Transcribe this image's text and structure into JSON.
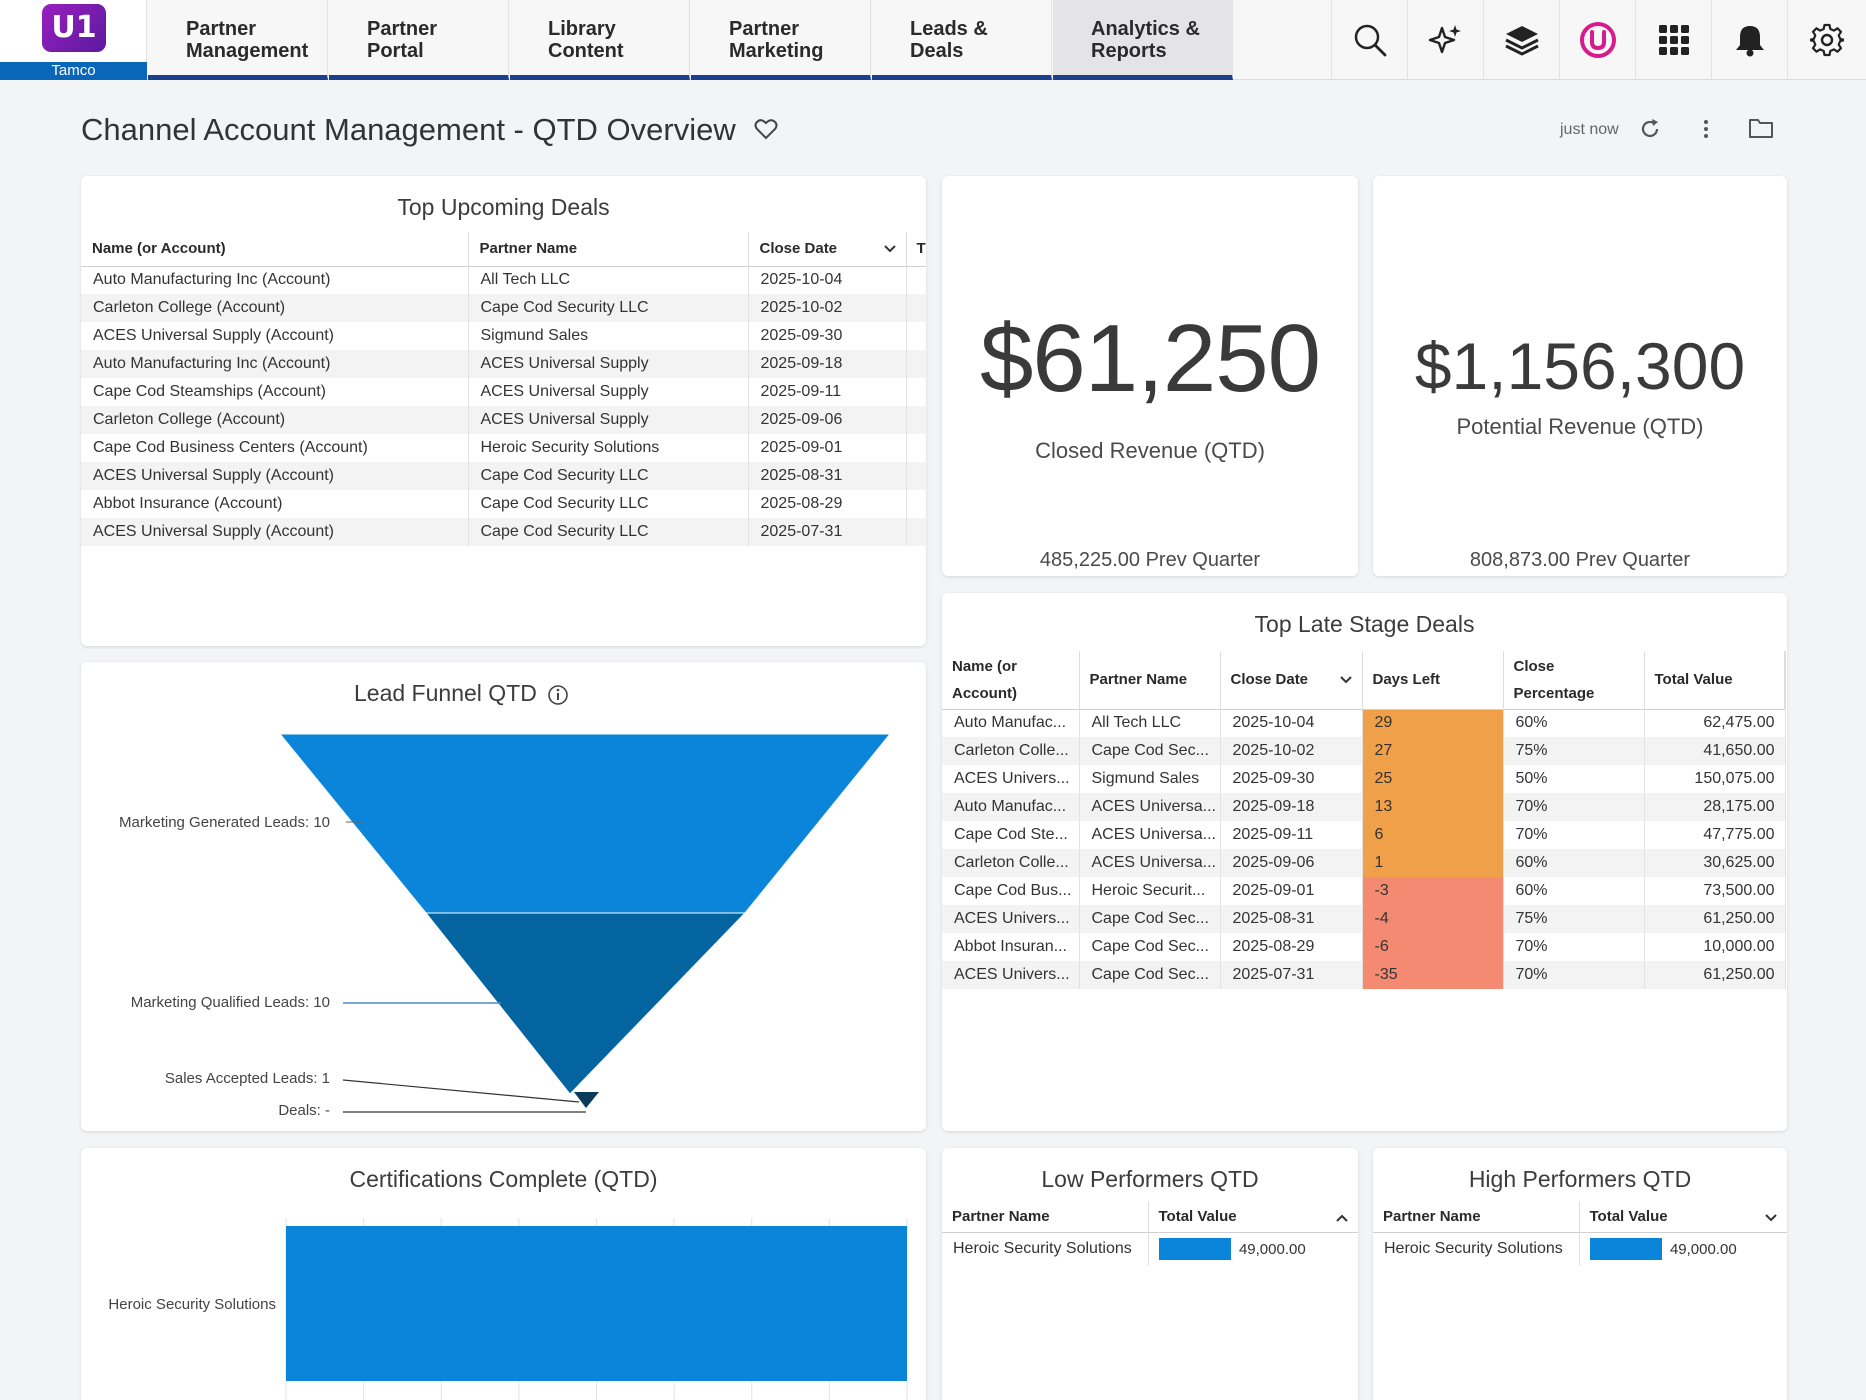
{
  "app": {
    "logo_text": "U1",
    "tenant": "Tamco"
  },
  "nav": {
    "tabs": [
      {
        "label": "Partner\nManagement"
      },
      {
        "label": "Partner\nPortal"
      },
      {
        "label": "Library\nContent"
      },
      {
        "label": "Partner\nMarketing"
      },
      {
        "label": "Leads &\nDeals"
      },
      {
        "label": "Analytics &\nReports",
        "active": true
      }
    ],
    "tools": [
      "search-icon",
      "sparkle-icon",
      "layers-icon",
      "brand-icon",
      "apps-grid-icon",
      "bell-icon",
      "gear-icon"
    ]
  },
  "page": {
    "title": "Channel Account Management - QTD Overview",
    "refresh_time": "just now"
  },
  "top_upcoming": {
    "title": "Top Upcoming Deals",
    "columns": [
      "Name (or Account)",
      "Partner Name",
      "Close Date",
      "T"
    ],
    "rows": [
      [
        "Auto Manufacturing Inc (Account)",
        "All Tech LLC",
        "2025-10-04"
      ],
      [
        "Carleton College (Account)",
        "Cape Cod Security LLC",
        "2025-10-02"
      ],
      [
        "ACES Universal Supply (Account)",
        "Sigmund Sales",
        "2025-09-30"
      ],
      [
        "Auto Manufacturing Inc (Account)",
        "ACES Universal Supply",
        "2025-09-18"
      ],
      [
        "Cape Cod Steamships (Account)",
        "ACES Universal Supply",
        "2025-09-11"
      ],
      [
        "Carleton College (Account)",
        "ACES Universal Supply",
        "2025-09-06"
      ],
      [
        "Cape Cod Business Centers (Account)",
        "Heroic Security Solutions",
        "2025-09-01"
      ],
      [
        "ACES Universal Supply (Account)",
        "Cape Cod Security LLC",
        "2025-08-31"
      ],
      [
        "Abbot Insurance (Account)",
        "Cape Cod Security LLC",
        "2025-08-29"
      ],
      [
        "ACES Universal Supply (Account)",
        "Cape Cod Security LLC",
        "2025-07-31"
      ]
    ]
  },
  "closed_revenue": {
    "value": "$61,250",
    "label": "Closed Revenue (QTD)",
    "prev": "485,225.00 Prev Quarter"
  },
  "potential_revenue": {
    "value": "$1,156,300",
    "label": "Potential Revenue (QTD)",
    "prev": "808,873.00 Prev Quarter"
  },
  "late_stage": {
    "title": "Top Late Stage Deals",
    "columns": [
      "Name (or Account)",
      "Partner Name",
      "Close Date",
      "Days Left",
      "Close Percentage",
      "Total Value"
    ],
    "rows": [
      [
        "Auto Manufac...",
        "All Tech LLC",
        "2025-10-04",
        "29",
        "60%",
        "62,475.00"
      ],
      [
        "Carleton Colle...",
        "Cape Cod Sec...",
        "2025-10-02",
        "27",
        "75%",
        "41,650.00"
      ],
      [
        "ACES Univers...",
        "Sigmund Sales",
        "2025-09-30",
        "25",
        "50%",
        "150,075.00"
      ],
      [
        "Auto Manufac...",
        "ACES Universa...",
        "2025-09-18",
        "13",
        "70%",
        "28,175.00"
      ],
      [
        "Cape Cod Ste...",
        "ACES Universa...",
        "2025-09-11",
        "6",
        "70%",
        "47,775.00"
      ],
      [
        "Carleton Colle...",
        "ACES Universa...",
        "2025-09-06",
        "1",
        "60%",
        "30,625.00"
      ],
      [
        "Cape Cod Bus...",
        "Heroic Securit...",
        "2025-09-01",
        "-3",
        "60%",
        "73,500.00"
      ],
      [
        "ACES Univers...",
        "Cape Cod Sec...",
        "2025-08-31",
        "-4",
        "75%",
        "61,250.00"
      ],
      [
        "Abbot Insuran...",
        "Cape Cod Sec...",
        "2025-08-29",
        "-6",
        "70%",
        "10,000.00"
      ],
      [
        "ACES Univers...",
        "Cape Cod Sec...",
        "2025-07-31",
        "-35",
        "70%",
        "61,250.00"
      ]
    ],
    "colors": {
      "warn": "#f0a048",
      "late": "#f48a72"
    }
  },
  "lead_funnel": {
    "title": "Lead Funnel QTD",
    "stages": [
      {
        "label": "Marketing Generated Leads: 10",
        "value": 10,
        "color": "#0a85da"
      },
      {
        "label": "Marketing Qualified Leads: 10",
        "value": 10,
        "color": "#03649f"
      },
      {
        "label": "Sales Accepted Leads: 1",
        "value": 1,
        "color": "#0c3a5c"
      },
      {
        "label": "Deals: -",
        "value": 0,
        "color": "#0c3a5c"
      }
    ]
  },
  "chart_data": {
    "type": "bar",
    "title": "Certifications Complete (QTD)",
    "orientation": "horizontal",
    "categories": [
      "Heroic Security Solutions"
    ],
    "values": [
      1
    ],
    "color": "#0a85da",
    "xlabel": "",
    "ylabel": ""
  },
  "low_performers": {
    "title": "Low Performers QTD",
    "columns": [
      "Partner Name",
      "Total Value"
    ],
    "rows": [
      {
        "name": "Heroic Security Solutions",
        "value": "49,000.00",
        "fraction": 1
      }
    ]
  },
  "high_performers": {
    "title": "High Performers QTD",
    "columns": [
      "Partner Name",
      "Total Value"
    ],
    "rows": [
      {
        "name": "Heroic Security Solutions",
        "value": "49,000.00",
        "fraction": 1
      }
    ]
  }
}
